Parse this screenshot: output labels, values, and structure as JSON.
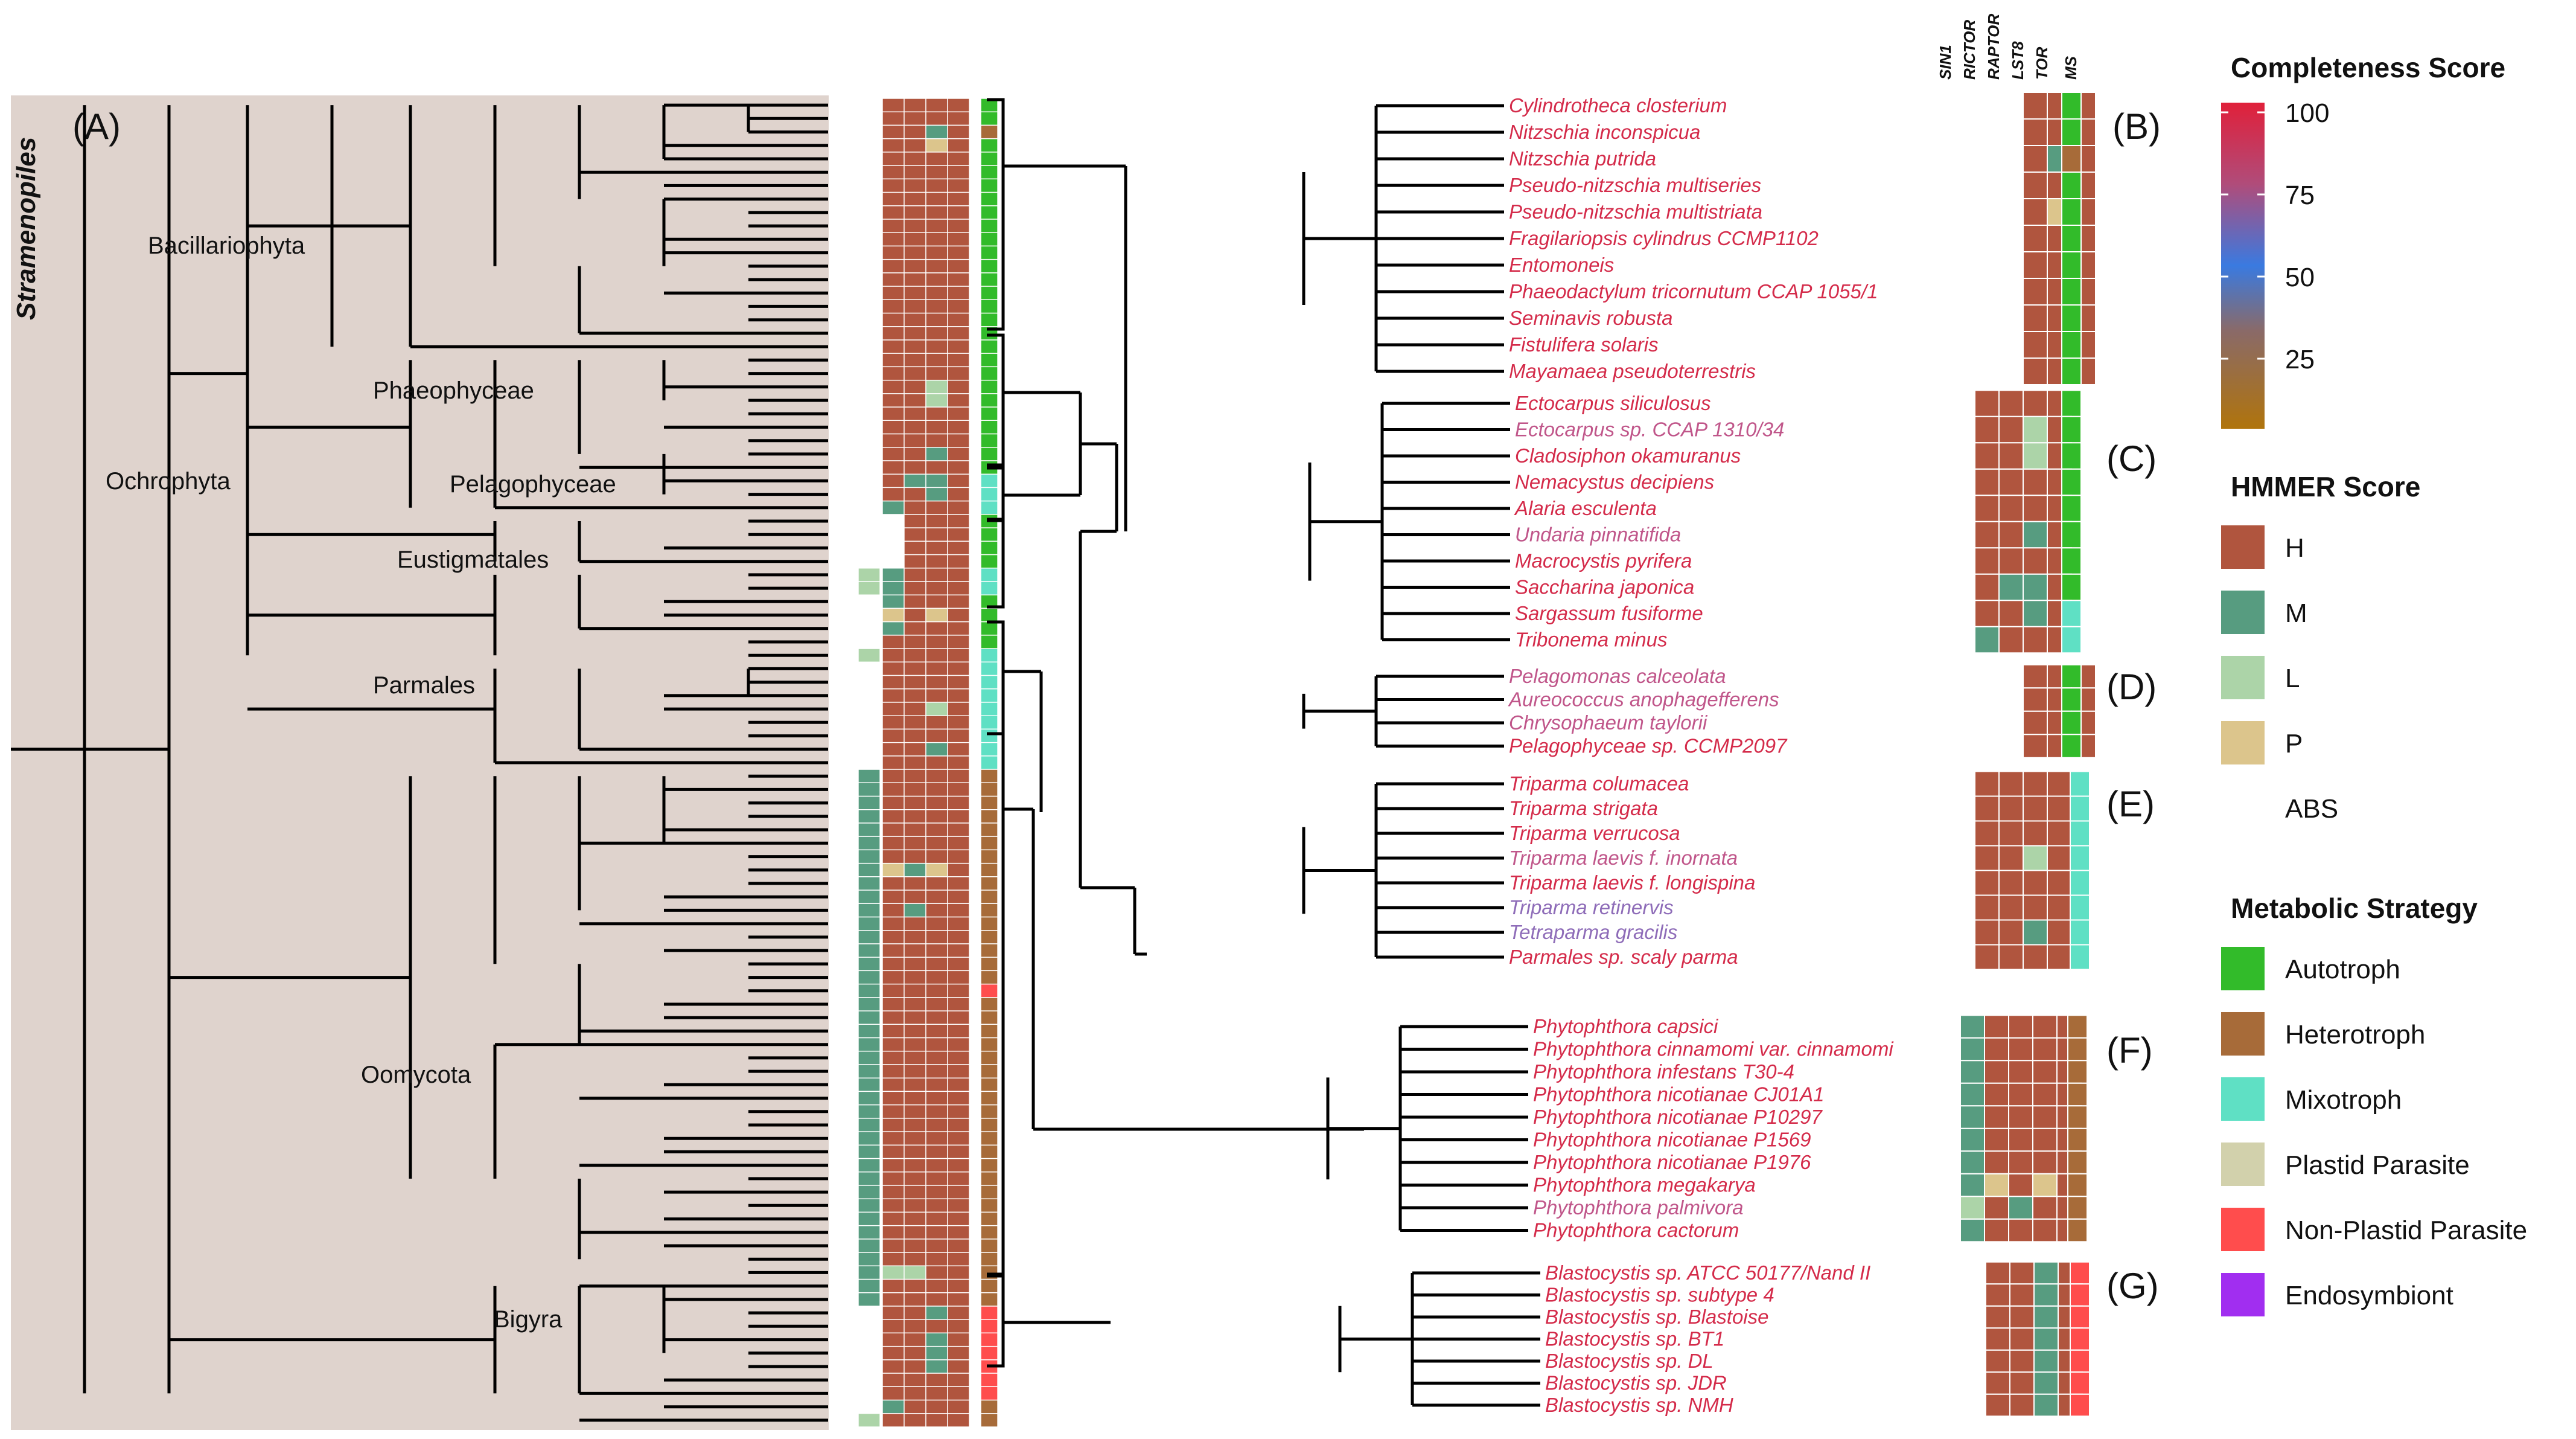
{
  "panel_labels": {
    "A": "(A)",
    "B": "(B)",
    "C": "(C)",
    "D": "(D)",
    "E": "(E)",
    "F": "(F)",
    "G": "(G)"
  },
  "main_title": "Stramenopiles",
  "clade_labels": {
    "bacillariophyta": "Bacillariophyta",
    "phaeophyceae": "Phaeophyceae",
    "ochrophyta": "Ochrophyta",
    "pelagophyceae": "Pelagophyceae",
    "eustigmatales": "Eustigmatales",
    "parmales": "Parmales",
    "oomycota": "Oomycota",
    "bigyra": "Bigyra"
  },
  "column_headers": [
    "SIN1",
    "RICTOR",
    "RAPTOR",
    "LST8",
    "TOR",
    "MS"
  ],
  "species": {
    "B": [
      "Cylindrotheca closterium",
      "Nitzschia inconspicua",
      "Nitzschia putrida",
      "Pseudo-nitzschia multiseries",
      "Pseudo-nitzschia multistriata",
      "Fragilariopsis cylindrus CCMP1102",
      "Entomoneis",
      "Phaeodactylum tricornutum CCAP 1055/1",
      "Seminavis robusta",
      "Fistulifera solaris",
      "Mayamaea pseudoterrestris"
    ],
    "C": [
      "Ectocarpus siliculosus",
      "Ectocarpus sp. CCAP 1310/34",
      "Cladosiphon okamuranus",
      "Nemacystus decipiens",
      "Alaria esculenta",
      "Undaria pinnatifida",
      "Macrocystis pyrifera",
      "Saccharina japonica",
      "Sargassum fusiforme",
      "Tribonema minus"
    ],
    "D": [
      "Pelagomonas calceolata",
      "Aureococcus anophagefferens",
      "Chrysophaeum taylorii",
      "Pelagophyceae sp. CCMP2097"
    ],
    "E": [
      "Triparma columacea",
      "Triparma strigata",
      "Triparma verrucosa",
      "Triparma laevis f. inornata",
      "Triparma laevis f. longispina",
      "Triparma retinervis",
      "Tetraparma gracilis",
      "Parmales sp. scaly parma"
    ],
    "F": [
      "Phytophthora capsici",
      "Phytophthora cinnamomi var. cinnamomi",
      "Phytophthora infestans T30-4",
      "Phytophthora nicotianae CJ01A1",
      "Phytophthora nicotianae P10297",
      "Phytophthora nicotianae P1569",
      "Phytophthora nicotianae P1976",
      "Phytophthora megakarya",
      "Phytophthora palmivora",
      "Phytophthora cactorum"
    ],
    "G": [
      "Blastocystis sp. ATCC 50177/Nand II",
      "Blastocystis sp. subtype 4",
      "Blastocystis sp. Blastoise",
      "Blastocystis sp. BT1",
      "Blastocystis sp. DL",
      "Blastocystis sp. JDR",
      "Blastocystis sp. NMH"
    ]
  },
  "species_colors": {
    "default": "#d42b4a",
    "light": "#c0568a",
    "purple": "#8e6cb8"
  },
  "species_light": [
    "Ectocarpus sp. CCAP 1310/34",
    "Undaria pinnatifida",
    "Pelagomonas calceolata",
    "Aureococcus anophagefferens",
    "Chrysophaeum taylorii",
    "Triparma laevis f. inornata",
    "Phytophthora palmivora"
  ],
  "species_purple": [
    "Triparma retinervis",
    "Tetraparma gracilis"
  ],
  "heatmap_matrix": {
    "B": [
      "ABS,ABS,H,H,H,A",
      "ABS,ABS,H,H,H,A",
      "ABS,ABS,H,M,H,HT",
      "ABS,ABS,H,H,H,A",
      "ABS,ABS,H,P,H,A",
      "ABS,ABS,H,H,H,A",
      "ABS,ABS,H,H,H,A",
      "ABS,ABS,H,H,H,A",
      "ABS,ABS,H,H,H,A",
      "ABS,ABS,H,H,H,A",
      "ABS,ABS,H,H,H,A"
    ],
    "C": [
      "ABS,H,H,H,H,A",
      "ABS,H,H,L,H,A",
      "ABS,H,H,L,H,A",
      "ABS,H,H,H,H,A",
      "ABS,H,H,H,H,A",
      "ABS,H,H,M,H,A",
      "ABS,H,H,H,H,A",
      "ABS,H,M,M,H,A",
      "ABS,H,H,M,H,MX",
      "ABS,M,H,H,H,MX"
    ],
    "D": [
      "ABS,ABS,H,H,H,A",
      "ABS,ABS,H,H,H,A",
      "ABS,ABS,H,H,H,A",
      "ABS,ABS,H,H,H,A"
    ],
    "E": [
      "ABS,H,H,H,H,MX",
      "ABS,H,H,H,H,MX",
      "ABS,H,H,H,H,MX",
      "ABS,H,H,L,H,MX",
      "ABS,H,H,H,H,MX",
      "ABS,H,H,H,H,MX",
      "ABS,H,H,M,H,MX",
      "ABS,H,H,H,H,MX"
    ],
    "F": [
      "M,H,H,H,H,HT",
      "M,H,H,H,H,HT",
      "M,H,H,H,H,HT",
      "M,H,H,H,H,HT",
      "M,H,H,H,H,HT",
      "M,H,H,H,H,HT",
      "M,H,H,H,H,HT",
      "M,P,H,P,H,HT",
      "L,H,M,H,H,HT",
      "M,H,H,H,H,HT"
    ],
    "G": [
      "ABS,H,H,M,H,NP",
      "ABS,H,H,M,H,NP",
      "ABS,H,H,M,H,NP",
      "ABS,H,H,M,H,NP",
      "ABS,H,H,M,H,NP",
      "ABS,H,H,M,H,NP",
      "ABS,H,H,M,H,NP"
    ]
  },
  "legend": {
    "completeness": {
      "title": "Completeness Score",
      "ticks": [
        "100",
        "75",
        "50",
        "25"
      ]
    },
    "hmmer": {
      "title": "HMMER Score",
      "items": [
        {
          "label": "H",
          "color": "#b0553e"
        },
        {
          "label": "M",
          "color": "#579c80"
        },
        {
          "label": "L",
          "color": "#acd4a8"
        },
        {
          "label": "P",
          "color": "#dcc58c"
        },
        {
          "label": "ABS",
          "color": "#ffffff"
        }
      ]
    },
    "metabolic": {
      "title": "Metabolic Strategy",
      "items": [
        {
          "label": "Autotroph",
          "color": "#32bb2a"
        },
        {
          "label": "Heterotroph",
          "color": "#a76b39"
        },
        {
          "label": "Mixotroph",
          "color": "#5fe0c4"
        },
        {
          "label": "Plastid Parasite",
          "color": "#d2d1ac"
        },
        {
          "label": "Non-Plastid Parasite",
          "color": "#ff4d4d"
        },
        {
          "label": "Endosymbiont",
          "color": "#a12ef0"
        }
      ]
    }
  },
  "overview_rows": {
    "hmmer": [
      "ABS,H,H,H,H",
      "ABS,H,H,H,H",
      "ABS,H,H,M,H",
      "ABS,H,H,P,H",
      "ABS,H,H,H,H",
      "ABS,H,H,H,H",
      "ABS,H,H,H,H",
      "ABS,H,H,H,H",
      "ABS,H,H,H,H",
      "ABS,H,H,H,H",
      "ABS,H,H,H,H",
      "ABS,H,H,H,H",
      "ABS,H,H,H,H",
      "ABS,H,H,H,H",
      "ABS,H,H,H,H",
      "ABS,H,H,H,H",
      "ABS,H,H,H,H",
      "ABS,H,H,H,H",
      "ABS,H,H,H,H",
      "ABS,H,H,H,H",
      "ABS,H,H,H,H",
      "ABS,H,H,L,H",
      "ABS,H,H,L,H",
      "ABS,H,H,H,H",
      "ABS,H,H,H,H",
      "ABS,H,H,H,H",
      "ABS,H,H,M,H",
      "ABS,H,H,H,H",
      "ABS,H,M,M,H",
      "ABS,H,H,M,H",
      "ABS,M,H,H,H",
      "ABS,ABS,H,H,H",
      "ABS,ABS,H,H,H",
      "ABS,ABS,H,H,H",
      "ABS,ABS,H,H,H",
      "L,M,H,H,H",
      "L,M,H,H,H",
      "ABS,M,H,H,H",
      "ABS,P,H,P,H",
      "ABS,M,H,H,H",
      "ABS,H,H,H,H",
      "L,H,H,H,H",
      "ABS,H,H,H,H",
      "ABS,H,H,H,H",
      "ABS,H,H,H,H",
      "ABS,H,H,L,H",
      "ABS,H,H,H,H",
      "ABS,H,H,H,H",
      "ABS,H,H,M,H",
      "ABS,H,H,H,H",
      "M,H,H,H,H",
      "M,H,H,H,H",
      "M,H,H,H,H",
      "M,H,H,H,H",
      "M,H,H,H,H",
      "M,H,H,H,H",
      "M,H,H,H,H",
      "M,P,M,P,H",
      "M,H,H,H,H",
      "M,H,H,H,H",
      "M,H,M,H,H",
      "M,H,H,H,H",
      "M,H,H,H,H",
      "M,H,H,H,H",
      "M,H,H,H,H",
      "M,H,H,H,H",
      "M,H,H,H,H",
      "M,H,H,H,H",
      "M,H,H,H,H",
      "M,H,H,H,H",
      "M,H,H,H,H",
      "M,H,H,H,H",
      "M,H,H,H,H",
      "M,H,H,H,H",
      "M,H,H,H,H",
      "M,H,H,H,H",
      "M,H,H,H,H",
      "M,H,H,H,H",
      "M,H,H,H,H",
      "M,H,H,H,H",
      "M,H,H,H,H",
      "M,H,H,H,H",
      "M,H,H,H,H",
      "M,H,H,H,H",
      "M,H,H,H,H",
      "M,H,H,H,H",
      "M,H,H,H,H",
      "M,L,L,H,H",
      "M,H,H,H,H",
      "M,H,H,H,H",
      "ABS,H,H,M,H",
      "ABS,H,H,H,H",
      "ABS,H,H,M,H",
      "ABS,H,H,M,H",
      "ABS,H,H,M,H",
      "ABS,H,H,H,H",
      "ABS,H,H,H,H",
      "ABS,M,H,H,H",
      "L,H,H,H,H"
    ],
    "ms": [
      "A",
      "A",
      "HT",
      "A",
      "A",
      "A",
      "A",
      "A",
      "A",
      "A",
      "A",
      "A",
      "A",
      "A",
      "A",
      "A",
      "A",
      "A",
      "A",
      "A",
      "A",
      "A",
      "A",
      "A",
      "A",
      "A",
      "A",
      "A",
      "MX",
      "MX",
      "MX",
      "A",
      "A",
      "A",
      "A",
      "MX",
      "MX",
      "A",
      "A",
      "A",
      "A",
      "MX",
      "MX",
      "MX",
      "MX",
      "MX",
      "MX",
      "MX",
      "MX",
      "MX",
      "HT",
      "HT",
      "HT",
      "HT",
      "HT",
      "HT",
      "HT",
      "HT",
      "HT",
      "HT",
      "HT",
      "HT",
      "HT",
      "HT",
      "HT",
      "HT",
      "NP",
      "HT",
      "HT",
      "HT",
      "HT",
      "HT",
      "HT",
      "HT",
      "HT",
      "HT",
      "HT",
      "HT",
      "HT",
      "HT",
      "HT",
      "HT",
      "HT",
      "HT",
      "HT",
      "HT",
      "HT",
      "HT",
      "HT",
      "HT",
      "NP",
      "NP",
      "NP",
      "NP",
      "NP",
      "NP",
      "NP",
      "HT",
      "HT"
    ]
  },
  "colors": {
    "H": "#b0553e",
    "M": "#579c80",
    "L": "#acd4a8",
    "P": "#dcc58c",
    "ABS": "#ffffff",
    "A": "#32bb2a",
    "HT": "#a76b39",
    "MX": "#5fe0c4",
    "NP": "#ff4d4d"
  }
}
